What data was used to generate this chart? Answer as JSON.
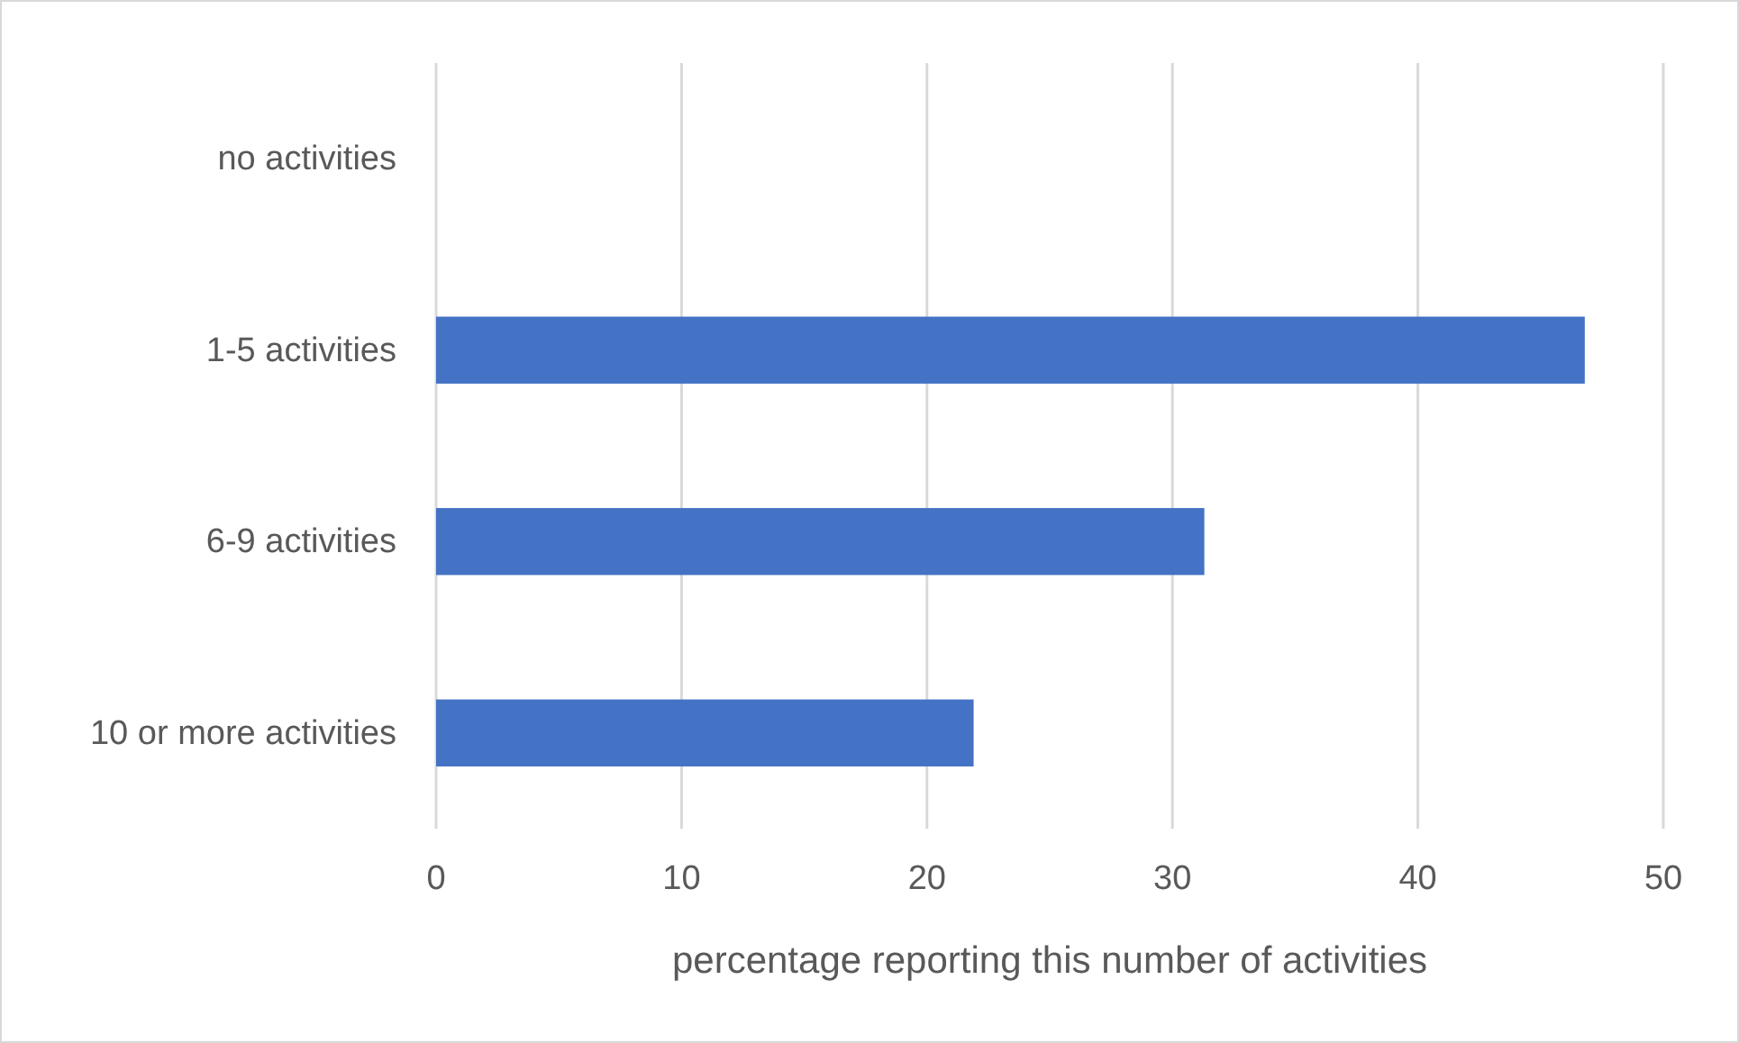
{
  "chart_data": {
    "type": "bar",
    "orientation": "horizontal",
    "xlabel": "percentage reporting this number of activities",
    "categories": [
      "no activities",
      "1-5 activities",
      "6-9 activities",
      "10 or more activities"
    ],
    "values": [
      0,
      46.8,
      31.3,
      21.9
    ],
    "color": "#4472c4",
    "xlim": [
      0,
      50
    ],
    "xticks": [
      0,
      10,
      20,
      30,
      40,
      50
    ],
    "grid": "x"
  }
}
